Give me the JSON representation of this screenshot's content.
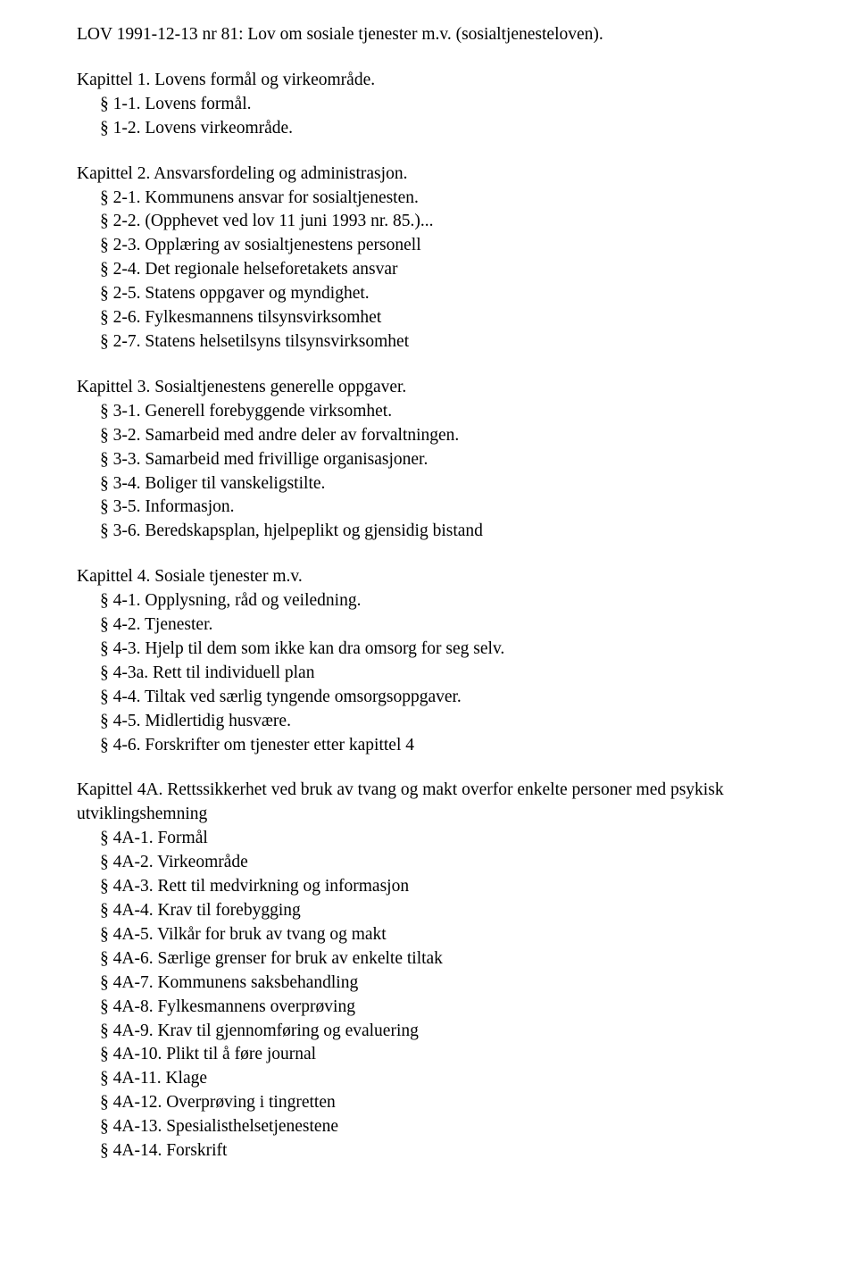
{
  "document": {
    "title": "LOV 1991-12-13 nr 81: Lov om sosiale tjenester m.v. (sosialtjenesteloven).",
    "font_family": "Garamond",
    "text_color": "#000000",
    "background_color": "#ffffff",
    "base_fontsize_pt": 15
  },
  "chapters": [
    {
      "heading": "Kapittel 1. Lovens formål og virkeområde.",
      "sections": [
        "§ 1-1. Lovens formål.",
        "§ 1-2. Lovens virkeområde."
      ]
    },
    {
      "heading": "Kapittel 2. Ansvarsfordeling og administrasjon.",
      "sections": [
        "§ 2-1. Kommunens ansvar for sosialtjenesten.",
        "§ 2-2. (Opphevet ved lov 11 juni 1993 nr. 85.)...",
        "§ 2-3. Opplæring av sosialtjenestens personell",
        "§ 2-4. Det regionale helseforetakets ansvar",
        "§ 2-5. Statens oppgaver og myndighet.",
        "§ 2-6. Fylkesmannens tilsynsvirksomhet",
        "§ 2-7. Statens helsetilsyns tilsynsvirksomhet"
      ]
    },
    {
      "heading": "Kapittel 3. Sosialtjenestens generelle oppgaver.",
      "sections": [
        "§ 3-1. Generell forebyggende virksomhet.",
        "§ 3-2. Samarbeid med andre deler av forvaltningen.",
        "§ 3-3. Samarbeid med frivillige organisasjoner.",
        "§ 3-4. Boliger til vanskeligstilte.",
        "§ 3-5. Informasjon.",
        "§ 3-6. Beredskapsplan, hjelpeplikt og gjensidig bistand"
      ]
    },
    {
      "heading": "Kapittel 4. Sosiale tjenester m.v.",
      "sections": [
        "§ 4-1. Opplysning, råd og veiledning.",
        "§ 4-2. Tjenester.",
        "§ 4-3. Hjelp til dem som ikke kan dra omsorg for seg selv.",
        "§ 4-3a. Rett til individuell plan",
        "§ 4-4. Tiltak ved særlig tyngende omsorgsoppgaver.",
        "§ 4-5. Midlertidig husvære.",
        "§ 4-6. Forskrifter om tjenester etter kapittel 4"
      ]
    },
    {
      "heading": "Kapittel 4A. Rettssikkerhet ved bruk av tvang og makt overfor enkelte personer med psykisk utviklingshemning",
      "heading_unindented_continuation": true,
      "sections": [
        "§ 4A-1. Formål",
        "§ 4A-2. Virkeområde",
        "§ 4A-3. Rett til medvirkning og informasjon",
        "§ 4A-4. Krav til forebygging",
        "§ 4A-5. Vilkår for bruk av tvang og makt",
        "§ 4A-6. Særlige grenser for bruk av enkelte tiltak",
        "§ 4A-7. Kommunens saksbehandling",
        "§ 4A-8. Fylkesmannens overprøving",
        "§ 4A-9. Krav til gjennomføring og evaluering",
        "§ 4A-10. Plikt til å føre journal",
        "§ 4A-11. Klage",
        "§ 4A-12. Overprøving i tingretten",
        "§ 4A-13. Spesialisthelsetjenestene",
        "§ 4A-14. Forskrift"
      ]
    }
  ]
}
